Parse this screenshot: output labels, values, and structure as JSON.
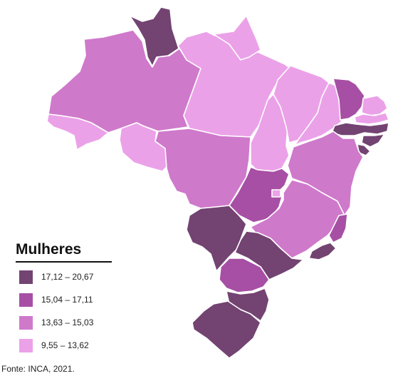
{
  "legend": {
    "title": "Mulheres",
    "items": [
      {
        "label": "17,12 – 20,67",
        "color": "#734372"
      },
      {
        "label": "15,04 – 17,11",
        "color": "#a64fa4"
      },
      {
        "label": "13,63 – 15,03",
        "color": "#cf79cb"
      },
      {
        "label": "9,55 – 13,62",
        "color": "#eba1e8"
      }
    ]
  },
  "source": "Fonte: INCA, 2021.",
  "colors": {
    "class1": "#734372",
    "class2": "#a64fa4",
    "class3": "#cf79cb",
    "class4": "#eba1e8",
    "border": "#ffffff"
  }
}
